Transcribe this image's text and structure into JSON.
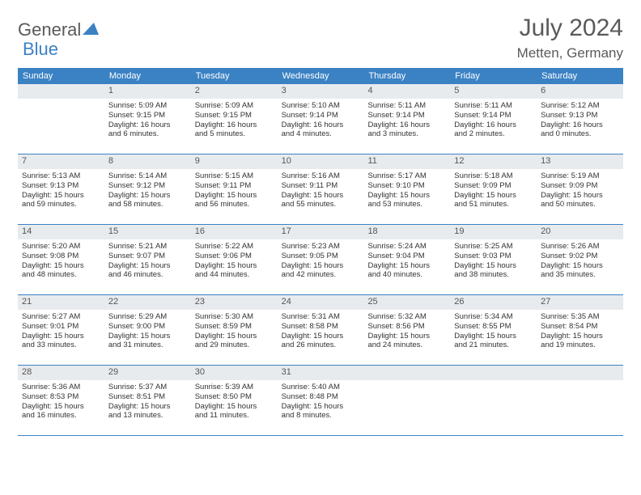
{
  "logo": {
    "part1": "General",
    "part2": "Blue"
  },
  "title": "July 2024",
  "location": "Metten, Germany",
  "colors": {
    "brand": "#3b82c4",
    "weekday_bg": "#3b82c4",
    "daynum_bg": "#e8ebee",
    "text": "#333333",
    "title_text": "#5a5a5a"
  },
  "calendar": {
    "type": "calendar-table",
    "weekdays": [
      "Sunday",
      "Monday",
      "Tuesday",
      "Wednesday",
      "Thursday",
      "Friday",
      "Saturday"
    ],
    "font_size_weekday": 11,
    "font_size_body": 9.5,
    "weeks": [
      [
        null,
        {
          "n": "1",
          "sunrise": "Sunrise: 5:09 AM",
          "sunset": "Sunset: 9:15 PM",
          "d1": "Daylight: 16 hours",
          "d2": "and 6 minutes."
        },
        {
          "n": "2",
          "sunrise": "Sunrise: 5:09 AM",
          "sunset": "Sunset: 9:15 PM",
          "d1": "Daylight: 16 hours",
          "d2": "and 5 minutes."
        },
        {
          "n": "3",
          "sunrise": "Sunrise: 5:10 AM",
          "sunset": "Sunset: 9:14 PM",
          "d1": "Daylight: 16 hours",
          "d2": "and 4 minutes."
        },
        {
          "n": "4",
          "sunrise": "Sunrise: 5:11 AM",
          "sunset": "Sunset: 9:14 PM",
          "d1": "Daylight: 16 hours",
          "d2": "and 3 minutes."
        },
        {
          "n": "5",
          "sunrise": "Sunrise: 5:11 AM",
          "sunset": "Sunset: 9:14 PM",
          "d1": "Daylight: 16 hours",
          "d2": "and 2 minutes."
        },
        {
          "n": "6",
          "sunrise": "Sunrise: 5:12 AM",
          "sunset": "Sunset: 9:13 PM",
          "d1": "Daylight: 16 hours",
          "d2": "and 0 minutes."
        }
      ],
      [
        {
          "n": "7",
          "sunrise": "Sunrise: 5:13 AM",
          "sunset": "Sunset: 9:13 PM",
          "d1": "Daylight: 15 hours",
          "d2": "and 59 minutes."
        },
        {
          "n": "8",
          "sunrise": "Sunrise: 5:14 AM",
          "sunset": "Sunset: 9:12 PM",
          "d1": "Daylight: 15 hours",
          "d2": "and 58 minutes."
        },
        {
          "n": "9",
          "sunrise": "Sunrise: 5:15 AM",
          "sunset": "Sunset: 9:11 PM",
          "d1": "Daylight: 15 hours",
          "d2": "and 56 minutes."
        },
        {
          "n": "10",
          "sunrise": "Sunrise: 5:16 AM",
          "sunset": "Sunset: 9:11 PM",
          "d1": "Daylight: 15 hours",
          "d2": "and 55 minutes."
        },
        {
          "n": "11",
          "sunrise": "Sunrise: 5:17 AM",
          "sunset": "Sunset: 9:10 PM",
          "d1": "Daylight: 15 hours",
          "d2": "and 53 minutes."
        },
        {
          "n": "12",
          "sunrise": "Sunrise: 5:18 AM",
          "sunset": "Sunset: 9:09 PM",
          "d1": "Daylight: 15 hours",
          "d2": "and 51 minutes."
        },
        {
          "n": "13",
          "sunrise": "Sunrise: 5:19 AM",
          "sunset": "Sunset: 9:09 PM",
          "d1": "Daylight: 15 hours",
          "d2": "and 50 minutes."
        }
      ],
      [
        {
          "n": "14",
          "sunrise": "Sunrise: 5:20 AM",
          "sunset": "Sunset: 9:08 PM",
          "d1": "Daylight: 15 hours",
          "d2": "and 48 minutes."
        },
        {
          "n": "15",
          "sunrise": "Sunrise: 5:21 AM",
          "sunset": "Sunset: 9:07 PM",
          "d1": "Daylight: 15 hours",
          "d2": "and 46 minutes."
        },
        {
          "n": "16",
          "sunrise": "Sunrise: 5:22 AM",
          "sunset": "Sunset: 9:06 PM",
          "d1": "Daylight: 15 hours",
          "d2": "and 44 minutes."
        },
        {
          "n": "17",
          "sunrise": "Sunrise: 5:23 AM",
          "sunset": "Sunset: 9:05 PM",
          "d1": "Daylight: 15 hours",
          "d2": "and 42 minutes."
        },
        {
          "n": "18",
          "sunrise": "Sunrise: 5:24 AM",
          "sunset": "Sunset: 9:04 PM",
          "d1": "Daylight: 15 hours",
          "d2": "and 40 minutes."
        },
        {
          "n": "19",
          "sunrise": "Sunrise: 5:25 AM",
          "sunset": "Sunset: 9:03 PM",
          "d1": "Daylight: 15 hours",
          "d2": "and 38 minutes."
        },
        {
          "n": "20",
          "sunrise": "Sunrise: 5:26 AM",
          "sunset": "Sunset: 9:02 PM",
          "d1": "Daylight: 15 hours",
          "d2": "and 35 minutes."
        }
      ],
      [
        {
          "n": "21",
          "sunrise": "Sunrise: 5:27 AM",
          "sunset": "Sunset: 9:01 PM",
          "d1": "Daylight: 15 hours",
          "d2": "and 33 minutes."
        },
        {
          "n": "22",
          "sunrise": "Sunrise: 5:29 AM",
          "sunset": "Sunset: 9:00 PM",
          "d1": "Daylight: 15 hours",
          "d2": "and 31 minutes."
        },
        {
          "n": "23",
          "sunrise": "Sunrise: 5:30 AM",
          "sunset": "Sunset: 8:59 PM",
          "d1": "Daylight: 15 hours",
          "d2": "and 29 minutes."
        },
        {
          "n": "24",
          "sunrise": "Sunrise: 5:31 AM",
          "sunset": "Sunset: 8:58 PM",
          "d1": "Daylight: 15 hours",
          "d2": "and 26 minutes."
        },
        {
          "n": "25",
          "sunrise": "Sunrise: 5:32 AM",
          "sunset": "Sunset: 8:56 PM",
          "d1": "Daylight: 15 hours",
          "d2": "and 24 minutes."
        },
        {
          "n": "26",
          "sunrise": "Sunrise: 5:34 AM",
          "sunset": "Sunset: 8:55 PM",
          "d1": "Daylight: 15 hours",
          "d2": "and 21 minutes."
        },
        {
          "n": "27",
          "sunrise": "Sunrise: 5:35 AM",
          "sunset": "Sunset: 8:54 PM",
          "d1": "Daylight: 15 hours",
          "d2": "and 19 minutes."
        }
      ],
      [
        {
          "n": "28",
          "sunrise": "Sunrise: 5:36 AM",
          "sunset": "Sunset: 8:53 PM",
          "d1": "Daylight: 15 hours",
          "d2": "and 16 minutes."
        },
        {
          "n": "29",
          "sunrise": "Sunrise: 5:37 AM",
          "sunset": "Sunset: 8:51 PM",
          "d1": "Daylight: 15 hours",
          "d2": "and 13 minutes."
        },
        {
          "n": "30",
          "sunrise": "Sunrise: 5:39 AM",
          "sunset": "Sunset: 8:50 PM",
          "d1": "Daylight: 15 hours",
          "d2": "and 11 minutes."
        },
        {
          "n": "31",
          "sunrise": "Sunrise: 5:40 AM",
          "sunset": "Sunset: 8:48 PM",
          "d1": "Daylight: 15 hours",
          "d2": "and 8 minutes."
        },
        null,
        null,
        null
      ]
    ]
  }
}
